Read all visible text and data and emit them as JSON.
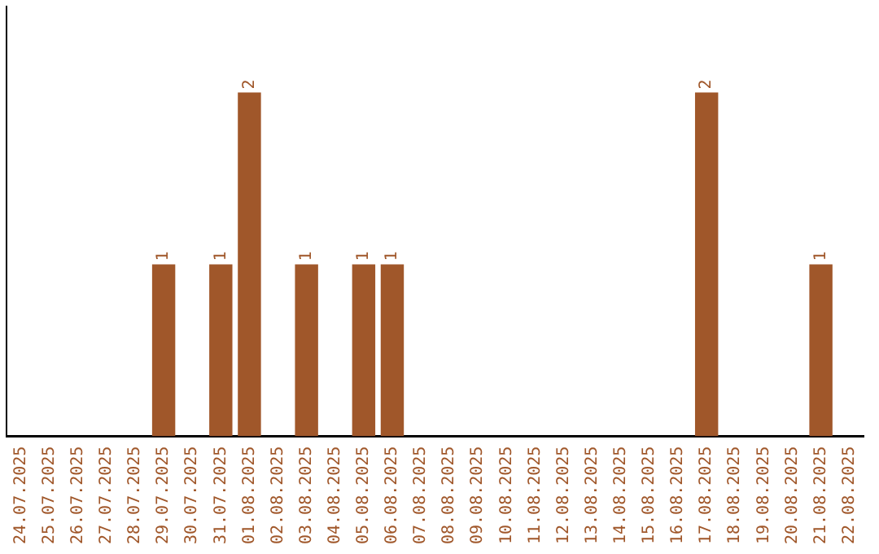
{
  "chart_data": {
    "type": "bar",
    "categories": [
      "24.07.2025",
      "25.07.2025",
      "26.07.2025",
      "27.07.2025",
      "28.07.2025",
      "29.07.2025",
      "30.07.2025",
      "31.07.2025",
      "01.08.2025",
      "02.08.2025",
      "03.08.2025",
      "04.08.2025",
      "05.08.2025",
      "06.08.2025",
      "07.08.2025",
      "08.08.2025",
      "09.08.2025",
      "10.08.2025",
      "11.08.2025",
      "12.08.2025",
      "13.08.2025",
      "14.08.2025",
      "15.08.2025",
      "16.08.2025",
      "17.08.2025",
      "18.08.2025",
      "19.08.2025",
      "20.08.2025",
      "21.08.2025",
      "22.08.2025"
    ],
    "values": [
      0,
      0,
      0,
      0,
      0,
      1,
      0,
      1,
      2,
      0,
      1,
      0,
      1,
      1,
      0,
      0,
      0,
      0,
      0,
      0,
      0,
      0,
      0,
      0,
      2,
      0,
      0,
      0,
      1,
      0
    ],
    "value_labels": [
      null,
      null,
      null,
      null,
      null,
      "1",
      null,
      "1",
      "2",
      null,
      "1",
      null,
      "1",
      "1",
      null,
      null,
      null,
      null,
      null,
      null,
      null,
      null,
      null,
      null,
      "2",
      null,
      null,
      null,
      "1",
      null
    ],
    "color": "#a0572a",
    "tick_labels": "x",
    "grid": false,
    "legend": false
  }
}
